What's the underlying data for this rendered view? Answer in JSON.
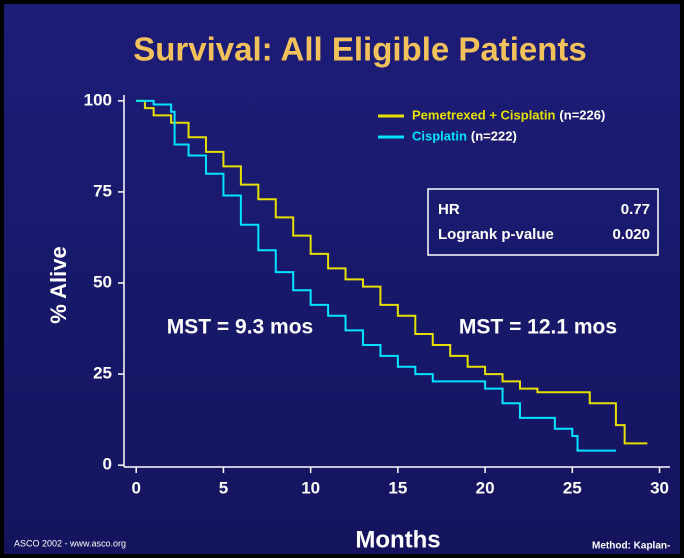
{
  "chart_data": {
    "type": "step",
    "title": "Survival: All Eligible Patients",
    "ylabel": "% Alive",
    "xlabel": "Months",
    "xlim": [
      -0.7,
      30.6
    ],
    "ylim": [
      -0.5,
      101.6
    ],
    "xticks": [
      0,
      5,
      10,
      15,
      20,
      25,
      30
    ],
    "yticks": [
      0,
      25,
      50,
      75,
      100
    ],
    "legend": "upper right",
    "series": [
      {
        "name": "Pemetrexed + Cisplatin",
        "n": "(n=226)",
        "color": "#e6e000",
        "x": [
          0,
          0.5,
          1,
          2,
          3,
          4,
          5,
          6,
          7,
          8,
          9,
          10,
          11,
          12,
          13,
          14,
          15,
          16,
          17,
          18,
          19,
          20,
          21,
          22,
          23,
          26,
          27.5,
          28,
          29.3
        ],
        "values": [
          100,
          98,
          96,
          94,
          90,
          86,
          82,
          77,
          73,
          68,
          63,
          58,
          54,
          51,
          49,
          44,
          41,
          36,
          33,
          30,
          27,
          25,
          23,
          21,
          20,
          17,
          11,
          6,
          6
        ]
      },
      {
        "name": "Cisplatin",
        "n": "(n=222)",
        "color": "#00e4ff",
        "x": [
          0,
          1,
          2,
          2.2,
          3,
          4,
          5,
          6,
          7,
          8,
          9,
          10,
          11,
          12,
          13,
          14,
          15,
          16,
          17,
          20,
          21,
          22,
          24,
          25,
          25.3,
          27.5
        ],
        "values": [
          100,
          99,
          97,
          88,
          85,
          80,
          74,
          66,
          59,
          53,
          48,
          44,
          41,
          37,
          33,
          30,
          27,
          25,
          23,
          21,
          17,
          13,
          10,
          8,
          4,
          4
        ]
      }
    ],
    "stats": {
      "hr_label": "HR",
      "hr": "0.77",
      "p_label": "Logrank p-value",
      "p": "0.020"
    },
    "annotations": [
      "MST = 9.3 mos",
      "MST = 12.1 mos"
    ],
    "footer_left": "ASCO 2002 - www.asco.org",
    "footer_right": "Method: Kaplan-"
  }
}
